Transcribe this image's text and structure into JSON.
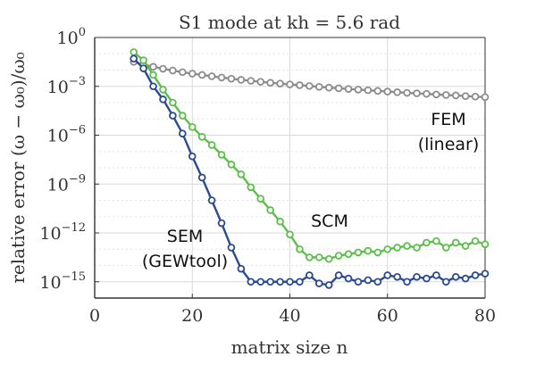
{
  "chart_data": {
    "type": "line",
    "title": "S1 mode at kh = 5.6 rad",
    "xlabel": "matrix size n",
    "ylabel": "relative error (ω − ω₀)/ω₀",
    "x_scale": "linear",
    "y_scale": "log",
    "xlim": [
      0,
      80
    ],
    "ylim_exponent": [
      -16,
      0
    ],
    "x_ticks": [
      "0",
      "20",
      "40",
      "60",
      "80"
    ],
    "y_ticks": [
      {
        "base": "10",
        "exp": "0"
      },
      {
        "base": "10",
        "exp": "−3"
      },
      {
        "base": "10",
        "exp": "−6"
      },
      {
        "base": "10",
        "exp": "−9"
      },
      {
        "base": "10",
        "exp": "−12"
      },
      {
        "base": "10",
        "exp": "−15"
      }
    ],
    "grid": true,
    "annotations": [
      {
        "lines": [
          "FEM",
          "(linear)"
        ],
        "series": "FEM (linear)"
      },
      {
        "lines": [
          "SCM"
        ],
        "series": "SCM"
      },
      {
        "lines": [
          "SEM",
          "(GEWtool)"
        ],
        "series": "SEM (GEWtool)"
      }
    ],
    "series": [
      {
        "name": "FEM (linear)",
        "color": "#8c8c8c",
        "x": [
          8,
          10,
          12,
          14,
          16,
          18,
          20,
          22,
          24,
          26,
          28,
          30,
          32,
          34,
          36,
          38,
          40,
          42,
          44,
          46,
          48,
          50,
          52,
          54,
          56,
          58,
          60,
          62,
          64,
          66,
          68,
          70,
          72,
          74,
          76,
          78,
          80
        ],
        "log10_y": [
          -1.5,
          -1.66,
          -1.8,
          -1.92,
          -2.03,
          -2.13,
          -2.22,
          -2.3,
          -2.38,
          -2.46,
          -2.53,
          -2.6,
          -2.66,
          -2.72,
          -2.78,
          -2.83,
          -2.88,
          -2.93,
          -2.98,
          -3.03,
          -3.08,
          -3.12,
          -3.16,
          -3.2,
          -3.24,
          -3.28,
          -3.32,
          -3.36,
          -3.4,
          -3.43,
          -3.46,
          -3.5,
          -3.53,
          -3.56,
          -3.6,
          -3.63,
          -3.66
        ]
      },
      {
        "name": "SCM",
        "color": "#5bbf4a",
        "x": [
          8,
          10,
          12,
          14,
          16,
          18,
          20,
          22,
          24,
          26,
          28,
          30,
          32,
          34,
          36,
          38,
          40,
          42,
          44,
          46,
          48,
          50,
          52,
          54,
          56,
          58,
          60,
          62,
          64,
          66,
          68,
          70,
          72,
          74,
          76,
          78,
          80
        ],
        "log10_y": [
          -0.9,
          -1.4,
          -2.3,
          -3.2,
          -4.0,
          -4.8,
          -5.5,
          -6.1,
          -6.6,
          -7.2,
          -7.8,
          -8.4,
          -9.2,
          -9.9,
          -10.6,
          -11.3,
          -12.1,
          -13.0,
          -13.5,
          -13.5,
          -13.6,
          -13.4,
          -13.3,
          -13.2,
          -13.1,
          -13.2,
          -13.0,
          -12.9,
          -12.8,
          -12.9,
          -12.6,
          -12.5,
          -12.9,
          -12.6,
          -12.8,
          -12.5,
          -12.7
        ]
      },
      {
        "name": "SEM (GEWtool)",
        "color": "#2b4a8f",
        "x": [
          8,
          10,
          12,
          14,
          16,
          18,
          20,
          22,
          24,
          26,
          28,
          30,
          32,
          34,
          36,
          38,
          40,
          42,
          44,
          46,
          48,
          50,
          52,
          54,
          56,
          58,
          60,
          62,
          64,
          66,
          68,
          70,
          72,
          74,
          76,
          78,
          80
        ],
        "log10_y": [
          -1.3,
          -1.9,
          -3.0,
          -3.8,
          -4.8,
          -5.9,
          -7.3,
          -8.6,
          -10.0,
          -11.4,
          -12.9,
          -14.2,
          -15.0,
          -15.0,
          -15.0,
          -15.0,
          -15.0,
          -15.0,
          -14.6,
          -15.1,
          -15.2,
          -14.6,
          -14.8,
          -15.0,
          -14.9,
          -15.0,
          -14.6,
          -14.7,
          -15.0,
          -14.7,
          -14.8,
          -14.6,
          -15.0,
          -14.7,
          -14.8,
          -14.6,
          -14.5
        ]
      }
    ]
  }
}
